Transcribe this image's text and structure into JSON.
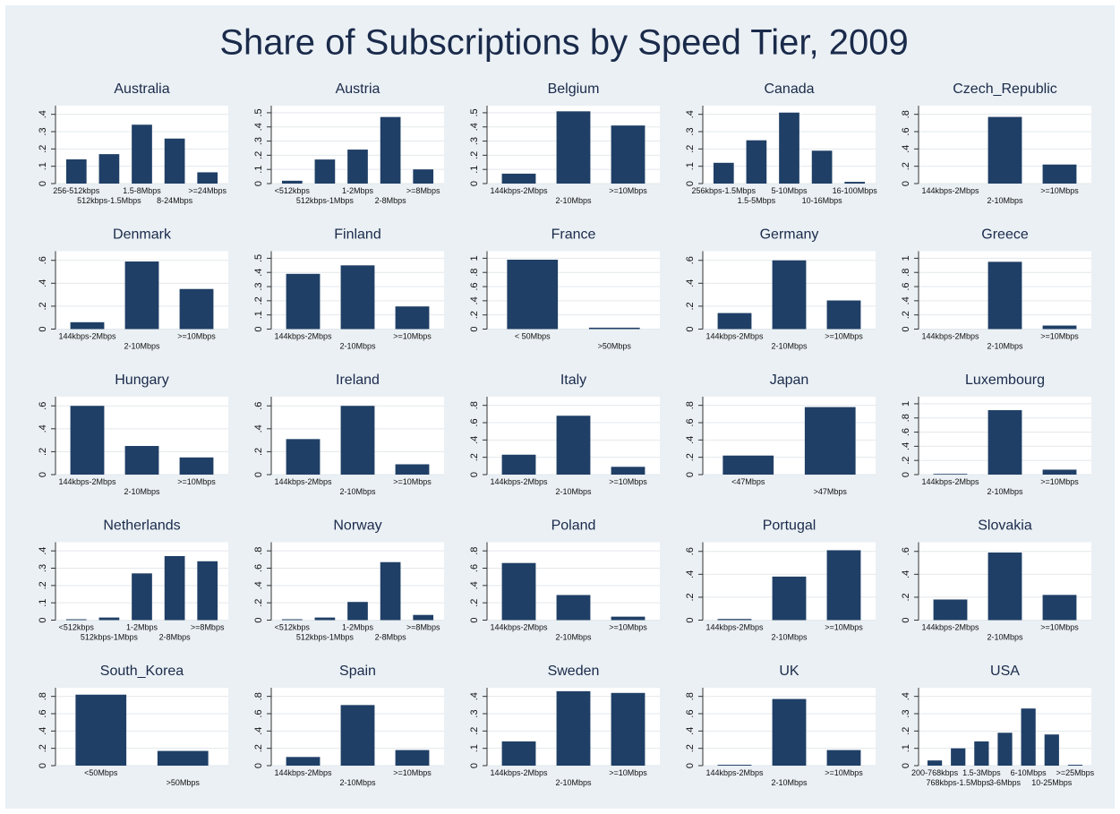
{
  "title": "Share of Subscriptions by Speed Tier, 2009",
  "chart_data": [
    {
      "type": "bar",
      "title": "Australia",
      "categories": [
        "256-512kbps",
        "512kbps-1.5Mbps",
        "1.5-8Mbps",
        "8-24Mbps",
        ">=24Mbps"
      ],
      "values": [
        0.14,
        0.17,
        0.34,
        0.26,
        0.065
      ],
      "color": "#1f3f66",
      "ylim": [
        0,
        0.45
      ],
      "yticks": [
        0,
        {
          "value": 0.1,
          "label": ".1"
        },
        {
          "value": 0.2,
          "label": ".2"
        },
        {
          "value": 0.3,
          "label": ".3"
        },
        {
          "value": 0.4,
          "label": ".4"
        }
      ],
      "grid": true
    },
    {
      "type": "bar",
      "title": "Austria",
      "categories": [
        "<512kbps",
        "512kbps-1Mbps",
        "1-2Mbps",
        "2-8Mbps",
        ">=8Mbps"
      ],
      "values": [
        0.02,
        0.17,
        0.24,
        0.47,
        0.1
      ],
      "color": "#1f3f66",
      "ylim": [
        0,
        0.55
      ],
      "yticks": [
        0,
        {
          "value": 0.1,
          "label": ".1"
        },
        {
          "value": 0.2,
          "label": ".2"
        },
        {
          "value": 0.3,
          "label": ".3"
        },
        {
          "value": 0.4,
          "label": ".4"
        },
        {
          "value": 0.5,
          "label": ".5"
        }
      ],
      "grid": true
    },
    {
      "type": "bar",
      "title": "Belgium",
      "categories": [
        "144kbps-2Mbps",
        "2-10Mbps",
        ">=10Mbps"
      ],
      "values": [
        0.07,
        0.51,
        0.41
      ],
      "color": "#1f3f66",
      "ylim": [
        0,
        0.55
      ],
      "yticks": [
        0,
        {
          "value": 0.1,
          "label": ".1"
        },
        {
          "value": 0.2,
          "label": ".2"
        },
        {
          "value": 0.3,
          "label": ".3"
        },
        {
          "value": 0.4,
          "label": ".4"
        },
        {
          "value": 0.5,
          "label": ".5"
        }
      ],
      "grid": true
    },
    {
      "type": "bar",
      "title": "Canada",
      "categories": [
        "256kbps-1.5Mbps",
        "1.5-5Mbps",
        "5-10Mbps",
        "10-16Mbps",
        "16-100Mbps"
      ],
      "values": [
        0.12,
        0.25,
        0.41,
        0.19,
        0.01
      ],
      "color": "#1f3f66",
      "ylim": [
        0,
        0.45
      ],
      "yticks": [
        0,
        {
          "value": 0.1,
          "label": ".1"
        },
        {
          "value": 0.2,
          "label": ".2"
        },
        {
          "value": 0.3,
          "label": ".3"
        },
        {
          "value": 0.4,
          "label": ".4"
        }
      ],
      "grid": true
    },
    {
      "type": "bar",
      "title": "Czech_Republic",
      "categories": [
        "144kbps-2Mbps",
        "2-10Mbps",
        ">=10Mbps"
      ],
      "values": [
        0,
        0.77,
        0.22
      ],
      "color": "#1f3f66",
      "ylim": [
        0,
        0.9
      ],
      "yticks": [
        0,
        {
          "value": 0.2,
          "label": ".2"
        },
        {
          "value": 0.4,
          "label": ".4"
        },
        {
          "value": 0.6,
          "label": ".6"
        },
        {
          "value": 0.8,
          "label": ".8"
        }
      ],
      "grid": true
    },
    {
      "type": "bar",
      "title": "Denmark",
      "categories": [
        "144kbps-2Mbps",
        "2-10Mbps",
        ">=10Mbps"
      ],
      "values": [
        0.06,
        0.59,
        0.35
      ],
      "color": "#1f3f66",
      "ylim": [
        0,
        0.68
      ],
      "yticks": [
        0,
        {
          "value": 0.2,
          "label": ".2"
        },
        {
          "value": 0.4,
          "label": ".4"
        },
        {
          "value": 0.6,
          "label": ".6"
        }
      ],
      "grid": true
    },
    {
      "type": "bar",
      "title": "Finland",
      "categories": [
        "144kbps-2Mbps",
        "2-10Mbps",
        ">=10Mbps"
      ],
      "values": [
        0.39,
        0.45,
        0.16
      ],
      "color": "#1f3f66",
      "ylim": [
        0,
        0.55
      ],
      "yticks": [
        0,
        {
          "value": 0.1,
          "label": ".1"
        },
        {
          "value": 0.2,
          "label": ".2"
        },
        {
          "value": 0.3,
          "label": ".3"
        },
        {
          "value": 0.4,
          "label": ".4"
        },
        {
          "value": 0.5,
          "label": ".5"
        }
      ],
      "grid": true
    },
    {
      "type": "bar",
      "title": "France",
      "categories": [
        "< 50Mbps",
        ">50Mbps"
      ],
      "values": [
        0.98,
        0.02
      ],
      "color": "#1f3f66",
      "ylim": [
        0,
        1.1
      ],
      "yticks": [
        0,
        {
          "value": 0.2,
          "label": ".2"
        },
        {
          "value": 0.4,
          "label": ".4"
        },
        {
          "value": 0.6,
          "label": ".6"
        },
        {
          "value": 0.8,
          "label": ".8"
        },
        1
      ],
      "grid": true
    },
    {
      "type": "bar",
      "title": "Germany",
      "categories": [
        "144kbps-2Mbps",
        "2-10Mbps",
        ">=10Mbps"
      ],
      "values": [
        0.14,
        0.6,
        0.25
      ],
      "color": "#1f3f66",
      "ylim": [
        0,
        0.68
      ],
      "yticks": [
        0,
        {
          "value": 0.2,
          "label": ".2"
        },
        {
          "value": 0.4,
          "label": ".4"
        },
        {
          "value": 0.6,
          "label": ".6"
        }
      ],
      "grid": true
    },
    {
      "type": "bar",
      "title": "Greece",
      "categories": [
        "144kbps-2Mbps",
        "2-10Mbps",
        ">=10Mbps"
      ],
      "values": [
        0,
        0.95,
        0.05
      ],
      "color": "#1f3f66",
      "ylim": [
        0,
        1.1
      ],
      "yticks": [
        0,
        {
          "value": 0.2,
          "label": ".2"
        },
        {
          "value": 0.4,
          "label": ".4"
        },
        {
          "value": 0.6,
          "label": ".6"
        },
        {
          "value": 0.8,
          "label": ".8"
        },
        1
      ],
      "grid": true
    },
    {
      "type": "bar",
      "title": "Hungary",
      "categories": [
        "144kbps-2Mbps",
        "2-10Mbps",
        ">=10Mbps"
      ],
      "values": [
        0.6,
        0.25,
        0.15
      ],
      "color": "#1f3f66",
      "ylim": [
        0,
        0.68
      ],
      "yticks": [
        0,
        {
          "value": 0.2,
          "label": ".2"
        },
        {
          "value": 0.4,
          "label": ".4"
        },
        {
          "value": 0.6,
          "label": ".6"
        }
      ],
      "grid": true
    },
    {
      "type": "bar",
      "title": "Ireland",
      "categories": [
        "144kbps-2Mbps",
        "2-10Mbps",
        ">=10Mbps"
      ],
      "values": [
        0.31,
        0.6,
        0.09
      ],
      "color": "#1f3f66",
      "ylim": [
        0,
        0.68
      ],
      "yticks": [
        0,
        {
          "value": 0.2,
          "label": ".2"
        },
        {
          "value": 0.4,
          "label": ".4"
        },
        {
          "value": 0.6,
          "label": ".6"
        }
      ],
      "grid": true
    },
    {
      "type": "bar",
      "title": "Italy",
      "categories": [
        "144kbps-2Mbps",
        "2-10Mbps",
        ">=10Mbps"
      ],
      "values": [
        0.23,
        0.68,
        0.09
      ],
      "color": "#1f3f66",
      "ylim": [
        0,
        0.9
      ],
      "yticks": [
        0,
        {
          "value": 0.2,
          "label": ".2"
        },
        {
          "value": 0.4,
          "label": ".4"
        },
        {
          "value": 0.6,
          "label": ".6"
        },
        {
          "value": 0.8,
          "label": ".8"
        }
      ],
      "grid": true
    },
    {
      "type": "bar",
      "title": "Japan",
      "categories": [
        "<47Mbps",
        ">47Mbps"
      ],
      "values": [
        0.22,
        0.78
      ],
      "color": "#1f3f66",
      "ylim": [
        0,
        0.9
      ],
      "yticks": [
        0,
        {
          "value": 0.2,
          "label": ".2"
        },
        {
          "value": 0.4,
          "label": ".4"
        },
        {
          "value": 0.6,
          "label": ".6"
        },
        {
          "value": 0.8,
          "label": ".8"
        }
      ],
      "grid": true
    },
    {
      "type": "bar",
      "title": "Luxembourg",
      "categories": [
        "144kbps-2Mbps",
        "2-10Mbps",
        ">=10Mbps"
      ],
      "values": [
        0.01,
        0.91,
        0.07
      ],
      "color": "#1f3f66",
      "ylim": [
        0,
        1.1
      ],
      "yticks": [
        0,
        {
          "value": 0.2,
          "label": ".2"
        },
        {
          "value": 0.4,
          "label": ".4"
        },
        {
          "value": 0.6,
          "label": ".6"
        },
        {
          "value": 0.8,
          "label": ".8"
        },
        1
      ],
      "grid": true
    },
    {
      "type": "bar",
      "title": "Netherlands",
      "categories": [
        "<512kbps",
        "512kbps-1Mbps",
        "1-2Mbps",
        "2-8Mbps",
        ">=8Mbps"
      ],
      "values": [
        0.005,
        0.015,
        0.27,
        0.37,
        0.34
      ],
      "color": "#1f3f66",
      "ylim": [
        0,
        0.45
      ],
      "yticks": [
        0,
        {
          "value": 0.1,
          "label": ".1"
        },
        {
          "value": 0.2,
          "label": ".2"
        },
        {
          "value": 0.3,
          "label": ".3"
        },
        {
          "value": 0.4,
          "label": ".4"
        }
      ],
      "grid": true
    },
    {
      "type": "bar",
      "title": "Norway",
      "categories": [
        "<512kbps",
        "512kbps-1Mbps",
        "1-2Mbps",
        "2-8Mbps",
        ">=8Mbps"
      ],
      "values": [
        0.01,
        0.03,
        0.21,
        0.67,
        0.06
      ],
      "color": "#1f3f66",
      "ylim": [
        0,
        0.9
      ],
      "yticks": [
        0,
        {
          "value": 0.2,
          "label": ".2"
        },
        {
          "value": 0.4,
          "label": ".4"
        },
        {
          "value": 0.6,
          "label": ".6"
        },
        {
          "value": 0.8,
          "label": ".8"
        }
      ],
      "grid": true
    },
    {
      "type": "bar",
      "title": "Poland",
      "categories": [
        "144kbps-2Mbps",
        "2-10Mbps",
        ">=10Mbps"
      ],
      "values": [
        0.66,
        0.29,
        0.04
      ],
      "color": "#1f3f66",
      "ylim": [
        0,
        0.9
      ],
      "yticks": [
        0,
        {
          "value": 0.2,
          "label": ".2"
        },
        {
          "value": 0.4,
          "label": ".4"
        },
        {
          "value": 0.6,
          "label": ".6"
        },
        {
          "value": 0.8,
          "label": ".8"
        }
      ],
      "grid": true
    },
    {
      "type": "bar",
      "title": "Portugal",
      "categories": [
        "144kbps-2Mbps",
        "2-10Mbps",
        ">=10Mbps"
      ],
      "values": [
        0.01,
        0.38,
        0.61
      ],
      "color": "#1f3f66",
      "ylim": [
        0,
        0.68
      ],
      "yticks": [
        0,
        {
          "value": 0.2,
          "label": ".2"
        },
        {
          "value": 0.4,
          "label": ".4"
        },
        {
          "value": 0.6,
          "label": ".6"
        }
      ],
      "grid": true
    },
    {
      "type": "bar",
      "title": "Slovakia",
      "categories": [
        "144kbps-2Mbps",
        "2-10Mbps",
        ">=10Mbps"
      ],
      "values": [
        0.18,
        0.59,
        0.22
      ],
      "color": "#1f3f66",
      "ylim": [
        0,
        0.68
      ],
      "yticks": [
        0,
        {
          "value": 0.2,
          "label": ".2"
        },
        {
          "value": 0.4,
          "label": ".4"
        },
        {
          "value": 0.6,
          "label": ".6"
        }
      ],
      "grid": true
    },
    {
      "type": "bar",
      "title": "South_Korea",
      "categories": [
        "<50Mbps",
        ">50Mbps"
      ],
      "values": [
        0.82,
        0.17
      ],
      "color": "#1f3f66",
      "ylim": [
        0,
        0.9
      ],
      "yticks": [
        0,
        {
          "value": 0.2,
          "label": ".2"
        },
        {
          "value": 0.4,
          "label": ".4"
        },
        {
          "value": 0.6,
          "label": ".6"
        },
        {
          "value": 0.8,
          "label": ".8"
        }
      ],
      "grid": true
    },
    {
      "type": "bar",
      "title": "Spain",
      "categories": [
        "144kbps-2Mbps",
        "2-10Mbps",
        ">=10Mbps"
      ],
      "values": [
        0.1,
        0.7,
        0.18
      ],
      "color": "#1f3f66",
      "ylim": [
        0,
        0.9
      ],
      "yticks": [
        0,
        {
          "value": 0.2,
          "label": ".2"
        },
        {
          "value": 0.4,
          "label": ".4"
        },
        {
          "value": 0.6,
          "label": ".6"
        },
        {
          "value": 0.8,
          "label": ".8"
        }
      ],
      "grid": true
    },
    {
      "type": "bar",
      "title": "Sweden",
      "categories": [
        "144kbps-2Mbps",
        "2-10Mbps",
        ">=10Mbps"
      ],
      "values": [
        0.14,
        0.43,
        0.42
      ],
      "color": "#1f3f66",
      "ylim": [
        0,
        0.45
      ],
      "yticks": [
        0,
        {
          "value": 0.1,
          "label": ".1"
        },
        {
          "value": 0.2,
          "label": ".2"
        },
        {
          "value": 0.3,
          "label": ".3"
        },
        {
          "value": 0.4,
          "label": ".4"
        }
      ],
      "grid": true
    },
    {
      "type": "bar",
      "title": "UK",
      "categories": [
        "144kbps-2Mbps",
        "2-10Mbps",
        ">=10Mbps"
      ],
      "values": [
        0.01,
        0.77,
        0.18
      ],
      "color": "#1f3f66",
      "ylim": [
        0,
        0.9
      ],
      "yticks": [
        0,
        {
          "value": 0.2,
          "label": ".2"
        },
        {
          "value": 0.4,
          "label": ".4"
        },
        {
          "value": 0.6,
          "label": ".6"
        },
        {
          "value": 0.8,
          "label": ".8"
        }
      ],
      "grid": true
    },
    {
      "type": "bar",
      "title": "USA",
      "categories": [
        "200-768kbps",
        "768kbps-1.5Mbps",
        "1.5-3Mbps",
        "3-6Mbps",
        "6-10Mbps",
        "10-25Mbps",
        ">=25Mbps"
      ],
      "values": [
        0.03,
        0.1,
        0.14,
        0.19,
        0.33,
        0.18,
        0.005
      ],
      "color": "#1f3f66",
      "ylim": [
        0,
        0.45
      ],
      "yticks": [
        0,
        {
          "value": 0.1,
          "label": ".1"
        },
        {
          "value": 0.2,
          "label": ".2"
        },
        {
          "value": 0.3,
          "label": ".3"
        },
        {
          "value": 0.4,
          "label": ".4"
        }
      ],
      "grid": true
    }
  ]
}
